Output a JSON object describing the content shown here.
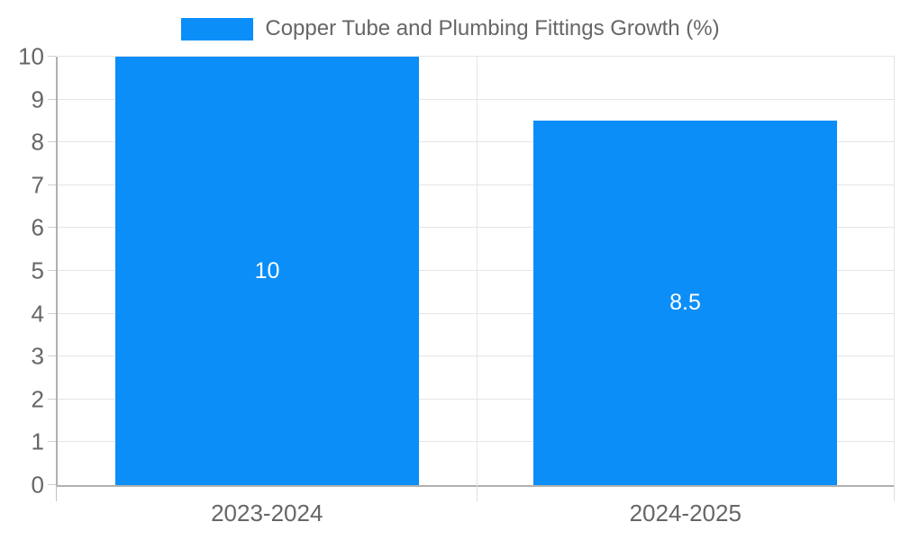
{
  "chart_data": {
    "type": "bar",
    "title": "",
    "legend": [
      "Copper Tube and Plumbing Fittings Growth (%)"
    ],
    "legend_position": "top",
    "categories": [
      "2023-2024",
      "2024-2025"
    ],
    "values": [
      10,
      8.5
    ],
    "bar_labels": [
      "10",
      "8.5"
    ],
    "xlabel": "",
    "ylabel": "",
    "ylim": [
      0,
      10
    ],
    "ytick_step": 1,
    "ytick_labels": [
      "0",
      "1",
      "2",
      "3",
      "4",
      "5",
      "6",
      "7",
      "8",
      "9",
      "10"
    ],
    "grid": true,
    "colors": {
      "bar": "#0b8ef8",
      "bar_label": "#ffffff",
      "axis_text": "#666666",
      "axis_line": "#b0b0b0",
      "gridline": "#e5e5e5",
      "background": "#ffffff"
    }
  }
}
